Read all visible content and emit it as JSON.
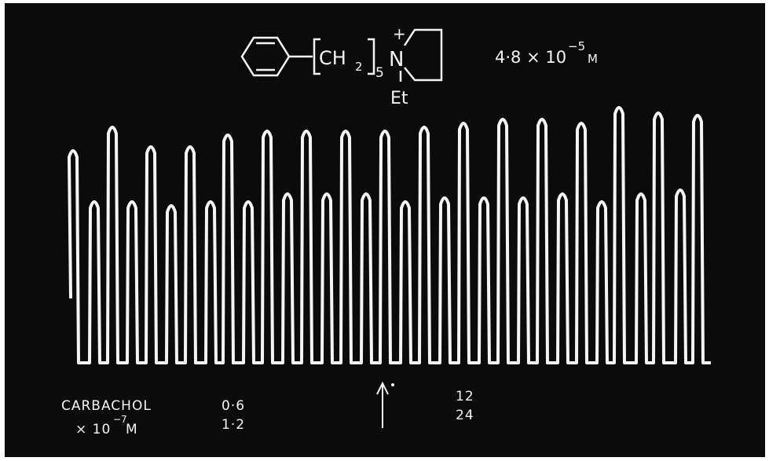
{
  "formula": {
    "group": "CH",
    "subscript_h": "2",
    "subscript_n": "5",
    "nitrogen": "N",
    "charge": "+",
    "substituent": "Et"
  },
  "concentration": {
    "mantissa": "4·8 × 10",
    "exponent": "−5",
    "unit": "M"
  },
  "agonist": {
    "name": "CARBACHOL",
    "scale": "× 10",
    "exponent": "−7",
    "unit": "M"
  },
  "doses": [
    [
      "0·6",
      "1·2"
    ],
    [
      "12",
      "24"
    ]
  ]
}
